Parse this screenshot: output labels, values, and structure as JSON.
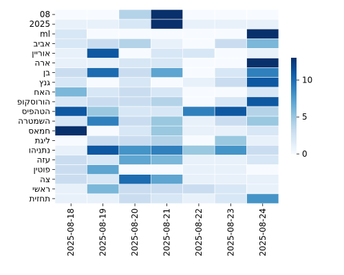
{
  "chart_data": {
    "type": "heatmap",
    "title": "",
    "xlabel": "",
    "ylabel": "",
    "x": [
      "2025-08-18",
      "2025-08-19",
      "2025-08-20",
      "2025-08-21",
      "2025-08-22",
      "2025-08-23",
      "2025-08-24"
    ],
    "y": [
      "08",
      "2025",
      "ml",
      "אביב",
      "אוריין",
      "ארה",
      "בן",
      "גנץ",
      "האח",
      "הורוסקופ",
      "הטהפיס",
      "השמטרה",
      "חמאס",
      "ליגת",
      "נתניהו",
      "עזה",
      "פוטין",
      "צה",
      "ראשי",
      "תחזית"
    ],
    "values": [
      [
        0,
        0,
        4,
        13,
        0,
        0,
        0
      ],
      [
        1,
        1,
        2,
        13,
        1,
        1,
        1
      ],
      [
        2,
        0,
        0,
        0,
        0,
        0,
        13
      ],
      [
        2,
        3,
        4,
        1,
        0,
        3,
        6
      ],
      [
        1,
        11,
        0,
        2,
        2,
        0,
        1
      ],
      [
        1,
        1,
        2,
        2,
        0,
        0,
        13
      ],
      [
        3,
        10,
        3,
        7,
        0,
        2,
        9
      ],
      [
        2,
        0,
        2,
        0,
        1,
        3,
        11
      ],
      [
        6,
        2,
        3,
        2,
        0,
        0,
        2
      ],
      [
        2,
        3,
        3,
        4,
        0,
        2,
        11
      ],
      [
        11,
        5,
        2,
        2,
        9,
        11,
        4
      ],
      [
        2,
        9,
        3,
        5,
        1,
        3,
        5
      ],
      [
        13,
        0,
        2,
        5,
        1,
        1,
        2
      ],
      [
        0,
        3,
        3,
        4,
        0,
        5,
        1
      ],
      [
        1,
        11,
        8,
        9,
        5,
        8,
        3
      ],
      [
        3,
        2,
        7,
        6,
        1,
        1,
        2
      ],
      [
        3,
        7,
        0,
        0,
        1,
        1,
        0
      ],
      [
        3,
        2,
        10,
        7,
        1,
        1,
        1
      ],
      [
        1,
        6,
        3,
        3,
        3,
        2,
        1
      ],
      [
        1,
        1,
        3,
        2,
        1,
        2,
        8
      ]
    ],
    "colorbar": {
      "min": 0,
      "max": 13,
      "ticks": [
        0,
        5,
        10
      ],
      "colormap": "Blues",
      "low_color": "#f7fbff",
      "high_color": "#08306b"
    }
  }
}
